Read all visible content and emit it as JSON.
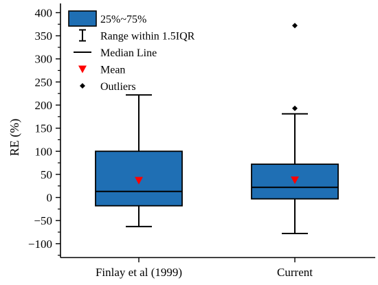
{
  "chart_data": {
    "type": "box",
    "ylabel": "RE (%)",
    "xlabel": "",
    "ylim": [
      -130,
      420
    ],
    "y_ticks": [
      -100,
      -50,
      0,
      50,
      100,
      150,
      200,
      250,
      300,
      350,
      400
    ],
    "y_tick_labels": [
      "−100",
      "−50",
      "0",
      "50",
      "100",
      "150",
      "200",
      "250",
      "300",
      "350",
      "400"
    ],
    "categories": [
      "Finlay et al (1999)",
      "Current"
    ],
    "boxes": [
      {
        "name": "Finlay et al (1999)",
        "whisker_low": -63,
        "q1": -18,
        "median": 13,
        "q3": 100,
        "whisker_high": 222,
        "mean": 37,
        "outliers": []
      },
      {
        "name": "Current",
        "whisker_low": -78,
        "q1": -3,
        "median": 22,
        "q3": 72,
        "whisker_high": 181,
        "mean": 38,
        "outliers": [
          193,
          372
        ]
      }
    ],
    "legend": {
      "placement": "top-left",
      "entries": [
        "25%~75%",
        "Range within 1.5IQR",
        "Median Line",
        "Mean",
        "Outliers"
      ]
    },
    "colors": {
      "box_fill": "#1f6fb4",
      "mean_marker": "#ff0000",
      "line": "#000000"
    },
    "grid": false
  }
}
